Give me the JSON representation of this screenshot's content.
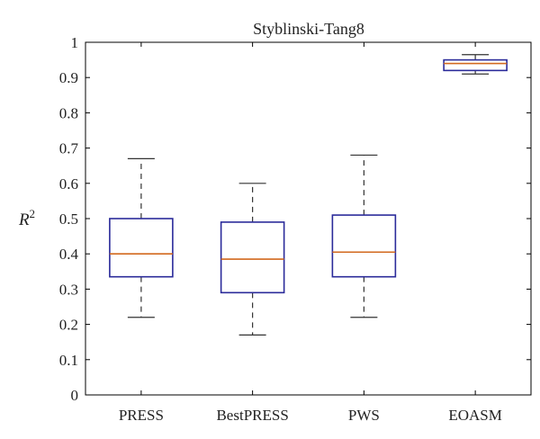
{
  "chart_data": {
    "type": "box",
    "title": "Styblinski-Tang8",
    "ylabel": "R",
    "ylabel_superscript": "2",
    "xlabel": "",
    "ylim": [
      0,
      1
    ],
    "yticks": [
      0,
      0.1,
      0.2,
      0.3,
      0.4,
      0.5,
      0.6,
      0.7,
      0.8,
      0.9,
      1
    ],
    "ytick_labels": [
      "0",
      "0.1",
      "0.2",
      "0.3",
      "0.4",
      "0.5",
      "0.6",
      "0.7",
      "0.8",
      "0.9",
      "1"
    ],
    "categories": [
      "PRESS",
      "BestPRESS",
      "PWS",
      "EOASM"
    ],
    "boxes": [
      {
        "category": "PRESS",
        "min": 0.22,
        "q1": 0.335,
        "median": 0.4,
        "q3": 0.5,
        "max": 0.67
      },
      {
        "category": "BestPRESS",
        "min": 0.17,
        "q1": 0.29,
        "median": 0.385,
        "q3": 0.49,
        "max": 0.6
      },
      {
        "category": "PWS",
        "min": 0.22,
        "q1": 0.335,
        "median": 0.405,
        "q3": 0.51,
        "max": 0.68
      },
      {
        "category": "EOASM",
        "min": 0.91,
        "q1": 0.92,
        "median": 0.94,
        "q3": 0.95,
        "max": 0.965
      }
    ],
    "colors": {
      "box": "#2b2b9a",
      "median": "#d2691e",
      "whisker": "#333333",
      "axis": "#000000"
    }
  }
}
